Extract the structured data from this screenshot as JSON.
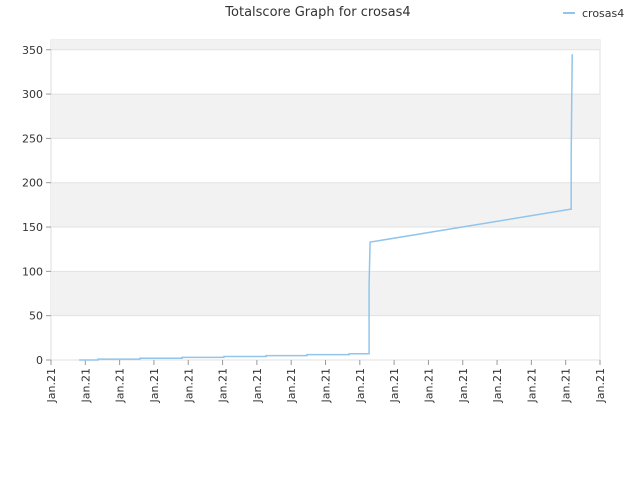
{
  "chart_data": {
    "type": "line",
    "title": "Totalscore Graph for crosas4",
    "x": [
      0.82,
      1.37,
      1.37,
      2.59,
      2.59,
      3.82,
      3.82,
      5.04,
      5.04,
      6.27,
      6.27,
      7.46,
      7.46,
      8.69,
      8.69,
      9.27,
      9.27,
      9.3,
      15.13,
      15.16,
      15.16,
      15.19
    ],
    "series": [
      {
        "name": "crosas4",
        "color": "#92c5eb",
        "values": [
          0,
          0,
          1,
          1,
          2,
          2,
          3,
          3,
          4,
          4,
          5,
          5,
          6,
          6,
          7,
          7,
          85,
          133,
          170,
          170,
          230,
          345
        ]
      }
    ],
    "xlim": [
      0,
      16
    ],
    "xticks": [
      {
        "value": 0,
        "label": "Jan.21"
      },
      {
        "value": 1,
        "label": "Jan.21"
      },
      {
        "value": 2,
        "label": "Jan.21"
      },
      {
        "value": 3,
        "label": "Jan.21"
      },
      {
        "value": 4,
        "label": "Jan.21"
      },
      {
        "value": 5,
        "label": "Jan.21"
      },
      {
        "value": 6,
        "label": "Jan.21"
      },
      {
        "value": 7,
        "label": "Jan.21"
      },
      {
        "value": 8,
        "label": "Jan.21"
      },
      {
        "value": 9,
        "label": "Jan.21"
      },
      {
        "value": 10,
        "label": "Jan.21"
      },
      {
        "value": 11,
        "label": "Jan.21"
      },
      {
        "value": 12,
        "label": "Jan.21"
      },
      {
        "value": 13,
        "label": "Jan.21"
      },
      {
        "value": 14,
        "label": "Jan.21"
      },
      {
        "value": 15,
        "label": "Jan.21"
      },
      {
        "value": 16,
        "label": "Jan.21"
      }
    ],
    "ylim": [
      0,
      361
    ],
    "yticks": [
      0,
      50,
      100,
      150,
      200,
      250,
      300,
      350
    ],
    "grid": true,
    "legend": "top-right"
  }
}
